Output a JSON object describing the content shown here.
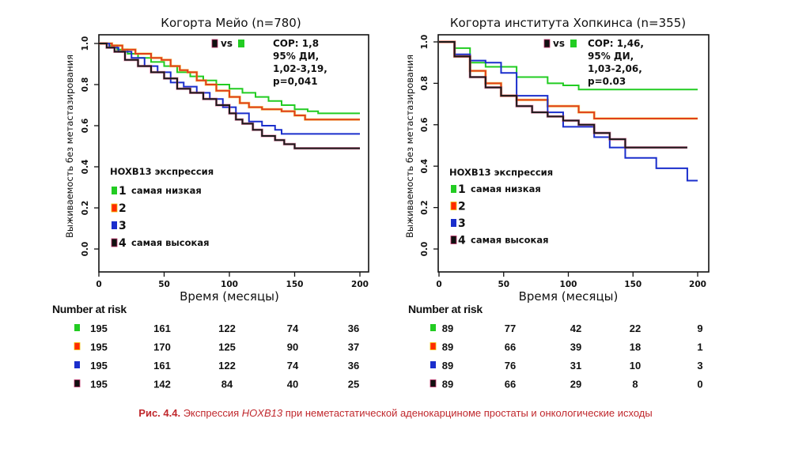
{
  "chart_data": [
    {
      "type": "line",
      "subtype": "kaplan-meier step",
      "title": "Когорта Мейо (n=780)",
      "xlabel": "Время (месяцы)",
      "ylabel": "Выживаемость без метастазирования",
      "xlim": [
        0,
        200
      ],
      "ylim": [
        0,
        1.0
      ],
      "xticks": [
        "0",
        "50",
        "100",
        "150",
        "200"
      ],
      "yticks": [
        "0.0",
        "0.2",
        "0.4",
        "0.6",
        "0.8",
        "1.0"
      ],
      "grid": false,
      "comparison": {
        "vs_label": "vs",
        "from_group": "4",
        "to_group": "1"
      },
      "stats": [
        "СОР: 1,8",
        "95% ДИ,",
        "1,02-3,19,",
        "p=0,041"
      ],
      "legend": {
        "title": "HOXB13 экспрессия",
        "placement": "bottom-left",
        "entries": [
          {
            "num": "1",
            "label": "самая низкая",
            "color": "#22cc22"
          },
          {
            "num": "2",
            "label": "",
            "color": "#ff2a00"
          },
          {
            "num": "3",
            "label": "",
            "color": "#1a2ecc"
          },
          {
            "num": "4",
            "label": "самая высокая",
            "color": "#111111"
          }
        ]
      },
      "series": [
        {
          "name": "1",
          "color": "#22cc22",
          "points": [
            [
              0,
              1.0
            ],
            [
              8,
              0.99
            ],
            [
              14,
              0.97
            ],
            [
              22,
              0.95
            ],
            [
              30,
              0.93
            ],
            [
              40,
              0.91
            ],
            [
              50,
              0.89
            ],
            [
              60,
              0.86
            ],
            [
              70,
              0.84
            ],
            [
              80,
              0.82
            ],
            [
              90,
              0.8
            ],
            [
              100,
              0.78
            ],
            [
              110,
              0.76
            ],
            [
              120,
              0.74
            ],
            [
              130,
              0.72
            ],
            [
              140,
              0.7
            ],
            [
              150,
              0.68
            ],
            [
              160,
              0.67
            ],
            [
              168,
              0.66
            ],
            [
              200,
              0.66
            ]
          ]
        },
        {
          "name": "2",
          "color": "#e0401a",
          "points": [
            [
              0,
              1.0
            ],
            [
              10,
              0.99
            ],
            [
              18,
              0.97
            ],
            [
              28,
              0.95
            ],
            [
              40,
              0.93
            ],
            [
              48,
              0.92
            ],
            [
              55,
              0.89
            ],
            [
              62,
              0.87
            ],
            [
              68,
              0.86
            ],
            [
              75,
              0.82
            ],
            [
              82,
              0.8
            ],
            [
              90,
              0.77
            ],
            [
              100,
              0.74
            ],
            [
              108,
              0.71
            ],
            [
              115,
              0.69
            ],
            [
              125,
              0.68
            ],
            [
              140,
              0.67
            ],
            [
              150,
              0.65
            ],
            [
              158,
              0.63
            ],
            [
              200,
              0.63
            ]
          ]
        },
        {
          "name": "3",
          "color": "#1a2ecc",
          "points": [
            [
              0,
              1.0
            ],
            [
              8,
              0.98
            ],
            [
              15,
              0.96
            ],
            [
              25,
              0.93
            ],
            [
              35,
              0.89
            ],
            [
              45,
              0.86
            ],
            [
              55,
              0.81
            ],
            [
              65,
              0.79
            ],
            [
              75,
              0.76
            ],
            [
              85,
              0.73
            ],
            [
              95,
              0.69
            ],
            [
              105,
              0.66
            ],
            [
              115,
              0.62
            ],
            [
              125,
              0.6
            ],
            [
              135,
              0.58
            ],
            [
              140,
              0.56
            ],
            [
              200,
              0.56
            ]
          ]
        },
        {
          "name": "4",
          "color": "#1a1a1a",
          "points": [
            [
              0,
              1.0
            ],
            [
              6,
              0.98
            ],
            [
              12,
              0.96
            ],
            [
              20,
              0.92
            ],
            [
              30,
              0.89
            ],
            [
              40,
              0.86
            ],
            [
              50,
              0.83
            ],
            [
              60,
              0.78
            ],
            [
              70,
              0.76
            ],
            [
              80,
              0.73
            ],
            [
              90,
              0.7
            ],
            [
              100,
              0.66
            ],
            [
              105,
              0.63
            ],
            [
              110,
              0.61
            ],
            [
              118,
              0.58
            ],
            [
              125,
              0.55
            ],
            [
              135,
              0.53
            ],
            [
              142,
              0.51
            ],
            [
              150,
              0.49
            ],
            [
              200,
              0.49
            ]
          ]
        }
      ],
      "number_at_risk": {
        "title": "Number at risk",
        "rows": [
          {
            "group": "1",
            "color": "#22cc22",
            "values": [
              "195",
              "161",
              "122",
              "74",
              "36"
            ]
          },
          {
            "group": "2",
            "color": "#ff2a00",
            "values": [
              "195",
              "170",
              "125",
              "90",
              "37"
            ]
          },
          {
            "group": "3",
            "color": "#1a2ecc",
            "values": [
              "195",
              "161",
              "122",
              "74",
              "36"
            ]
          },
          {
            "group": "4",
            "color": "#111111",
            "values": [
              "195",
              "142",
              "84",
              "40",
              "25"
            ]
          }
        ]
      }
    },
    {
      "type": "line",
      "subtype": "kaplan-meier step",
      "title": "Когорта института Хопкинса (n=355)",
      "xlabel": "Время (месяцы)",
      "ylabel": "Выживаемость без метастазирования",
      "xlim": [
        0,
        200
      ],
      "ylim": [
        0,
        1.0
      ],
      "xticks": [
        "0",
        "50",
        "100",
        "150",
        "200"
      ],
      "yticks": [
        "0.0",
        "0.2",
        "0.4",
        "0.6",
        "0.8",
        "1.0"
      ],
      "grid": false,
      "comparison": {
        "vs_label": "vs",
        "from_group": "4",
        "to_group": "1"
      },
      "stats": [
        "СОР: 1,46,",
        "95% ДИ,",
        "1,03-2,06,",
        "p=0.03"
      ],
      "legend": {
        "title": "HOXB13 экспрессия",
        "placement": "bottom-left",
        "entries": [
          {
            "num": "1",
            "label": "самая низкая",
            "color": "#22cc22"
          },
          {
            "num": "2",
            "label": "",
            "color": "#ff2a00"
          },
          {
            "num": "3",
            "label": "",
            "color": "#1a2ecc"
          },
          {
            "num": "4",
            "label": "самая высокая",
            "color": "#111111"
          }
        ]
      },
      "series": [
        {
          "name": "1",
          "color": "#22cc22",
          "points": [
            [
              0,
              1.0
            ],
            [
              12,
              1.0
            ],
            [
              12,
              0.97
            ],
            [
              24,
              0.97
            ],
            [
              24,
              0.9
            ],
            [
              36,
              0.9
            ],
            [
              36,
              0.88
            ],
            [
              60,
              0.88
            ],
            [
              60,
              0.83
            ],
            [
              84,
              0.83
            ],
            [
              84,
              0.8
            ],
            [
              96,
              0.8
            ],
            [
              96,
              0.79
            ],
            [
              108,
              0.79
            ],
            [
              108,
              0.77
            ],
            [
              200,
              0.77
            ]
          ]
        },
        {
          "name": "2",
          "color": "#e0401a",
          "points": [
            [
              0,
              1.0
            ],
            [
              12,
              1.0
            ],
            [
              12,
              0.93
            ],
            [
              24,
              0.93
            ],
            [
              24,
              0.86
            ],
            [
              36,
              0.86
            ],
            [
              36,
              0.8
            ],
            [
              48,
              0.8
            ],
            [
              48,
              0.74
            ],
            [
              60,
              0.74
            ],
            [
              60,
              0.72
            ],
            [
              84,
              0.72
            ],
            [
              84,
              0.69
            ],
            [
              108,
              0.69
            ],
            [
              108,
              0.66
            ],
            [
              120,
              0.66
            ],
            [
              120,
              0.63
            ],
            [
              200,
              0.63
            ]
          ]
        },
        {
          "name": "3",
          "color": "#1a2ecc",
          "points": [
            [
              0,
              1.0
            ],
            [
              12,
              1.0
            ],
            [
              12,
              0.94
            ],
            [
              24,
              0.94
            ],
            [
              24,
              0.91
            ],
            [
              36,
              0.91
            ],
            [
              36,
              0.9
            ],
            [
              48,
              0.9
            ],
            [
              48,
              0.85
            ],
            [
              60,
              0.85
            ],
            [
              60,
              0.74
            ],
            [
              84,
              0.74
            ],
            [
              84,
              0.66
            ],
            [
              96,
              0.66
            ],
            [
              96,
              0.59
            ],
            [
              120,
              0.59
            ],
            [
              120,
              0.54
            ],
            [
              132,
              0.54
            ],
            [
              132,
              0.49
            ],
            [
              144,
              0.49
            ],
            [
              144,
              0.44
            ],
            [
              168,
              0.44
            ],
            [
              168,
              0.39
            ],
            [
              192,
              0.39
            ],
            [
              192,
              0.33
            ],
            [
              200,
              0.33
            ]
          ]
        },
        {
          "name": "4",
          "color": "#1a1a1a",
          "points": [
            [
              0,
              1.0
            ],
            [
              12,
              1.0
            ],
            [
              12,
              0.93
            ],
            [
              24,
              0.93
            ],
            [
              24,
              0.83
            ],
            [
              36,
              0.83
            ],
            [
              36,
              0.78
            ],
            [
              48,
              0.78
            ],
            [
              48,
              0.74
            ],
            [
              60,
              0.74
            ],
            [
              60,
              0.69
            ],
            [
              72,
              0.69
            ],
            [
              72,
              0.66
            ],
            [
              84,
              0.66
            ],
            [
              84,
              0.64
            ],
            [
              96,
              0.64
            ],
            [
              96,
              0.62
            ],
            [
              108,
              0.62
            ],
            [
              108,
              0.6
            ],
            [
              120,
              0.6
            ],
            [
              120,
              0.56
            ],
            [
              132,
              0.56
            ],
            [
              132,
              0.53
            ],
            [
              144,
              0.53
            ],
            [
              144,
              0.49
            ],
            [
              192,
              0.49
            ]
          ]
        }
      ],
      "number_at_risk": {
        "title": "Number at risk",
        "rows": [
          {
            "group": "1",
            "color": "#22cc22",
            "values": [
              "89",
              "77",
              "42",
              "22",
              "9"
            ]
          },
          {
            "group": "2",
            "color": "#ff2a00",
            "values": [
              "89",
              "66",
              "39",
              "18",
              "1"
            ]
          },
          {
            "group": "3",
            "color": "#1a2ecc",
            "values": [
              "89",
              "76",
              "31",
              "10",
              "3"
            ]
          },
          {
            "group": "4",
            "color": "#111111",
            "values": [
              "89",
              "66",
              "29",
              "8",
              "0"
            ]
          }
        ]
      }
    }
  ],
  "caption": {
    "prefix": "Рис. 4.4.",
    "text_before": " Экспрессия ",
    "gene": "HOXB13",
    "text_after": " при неметастатической аденокарциноме простаты и онкологические исходы",
    "color": "#c0282d"
  }
}
